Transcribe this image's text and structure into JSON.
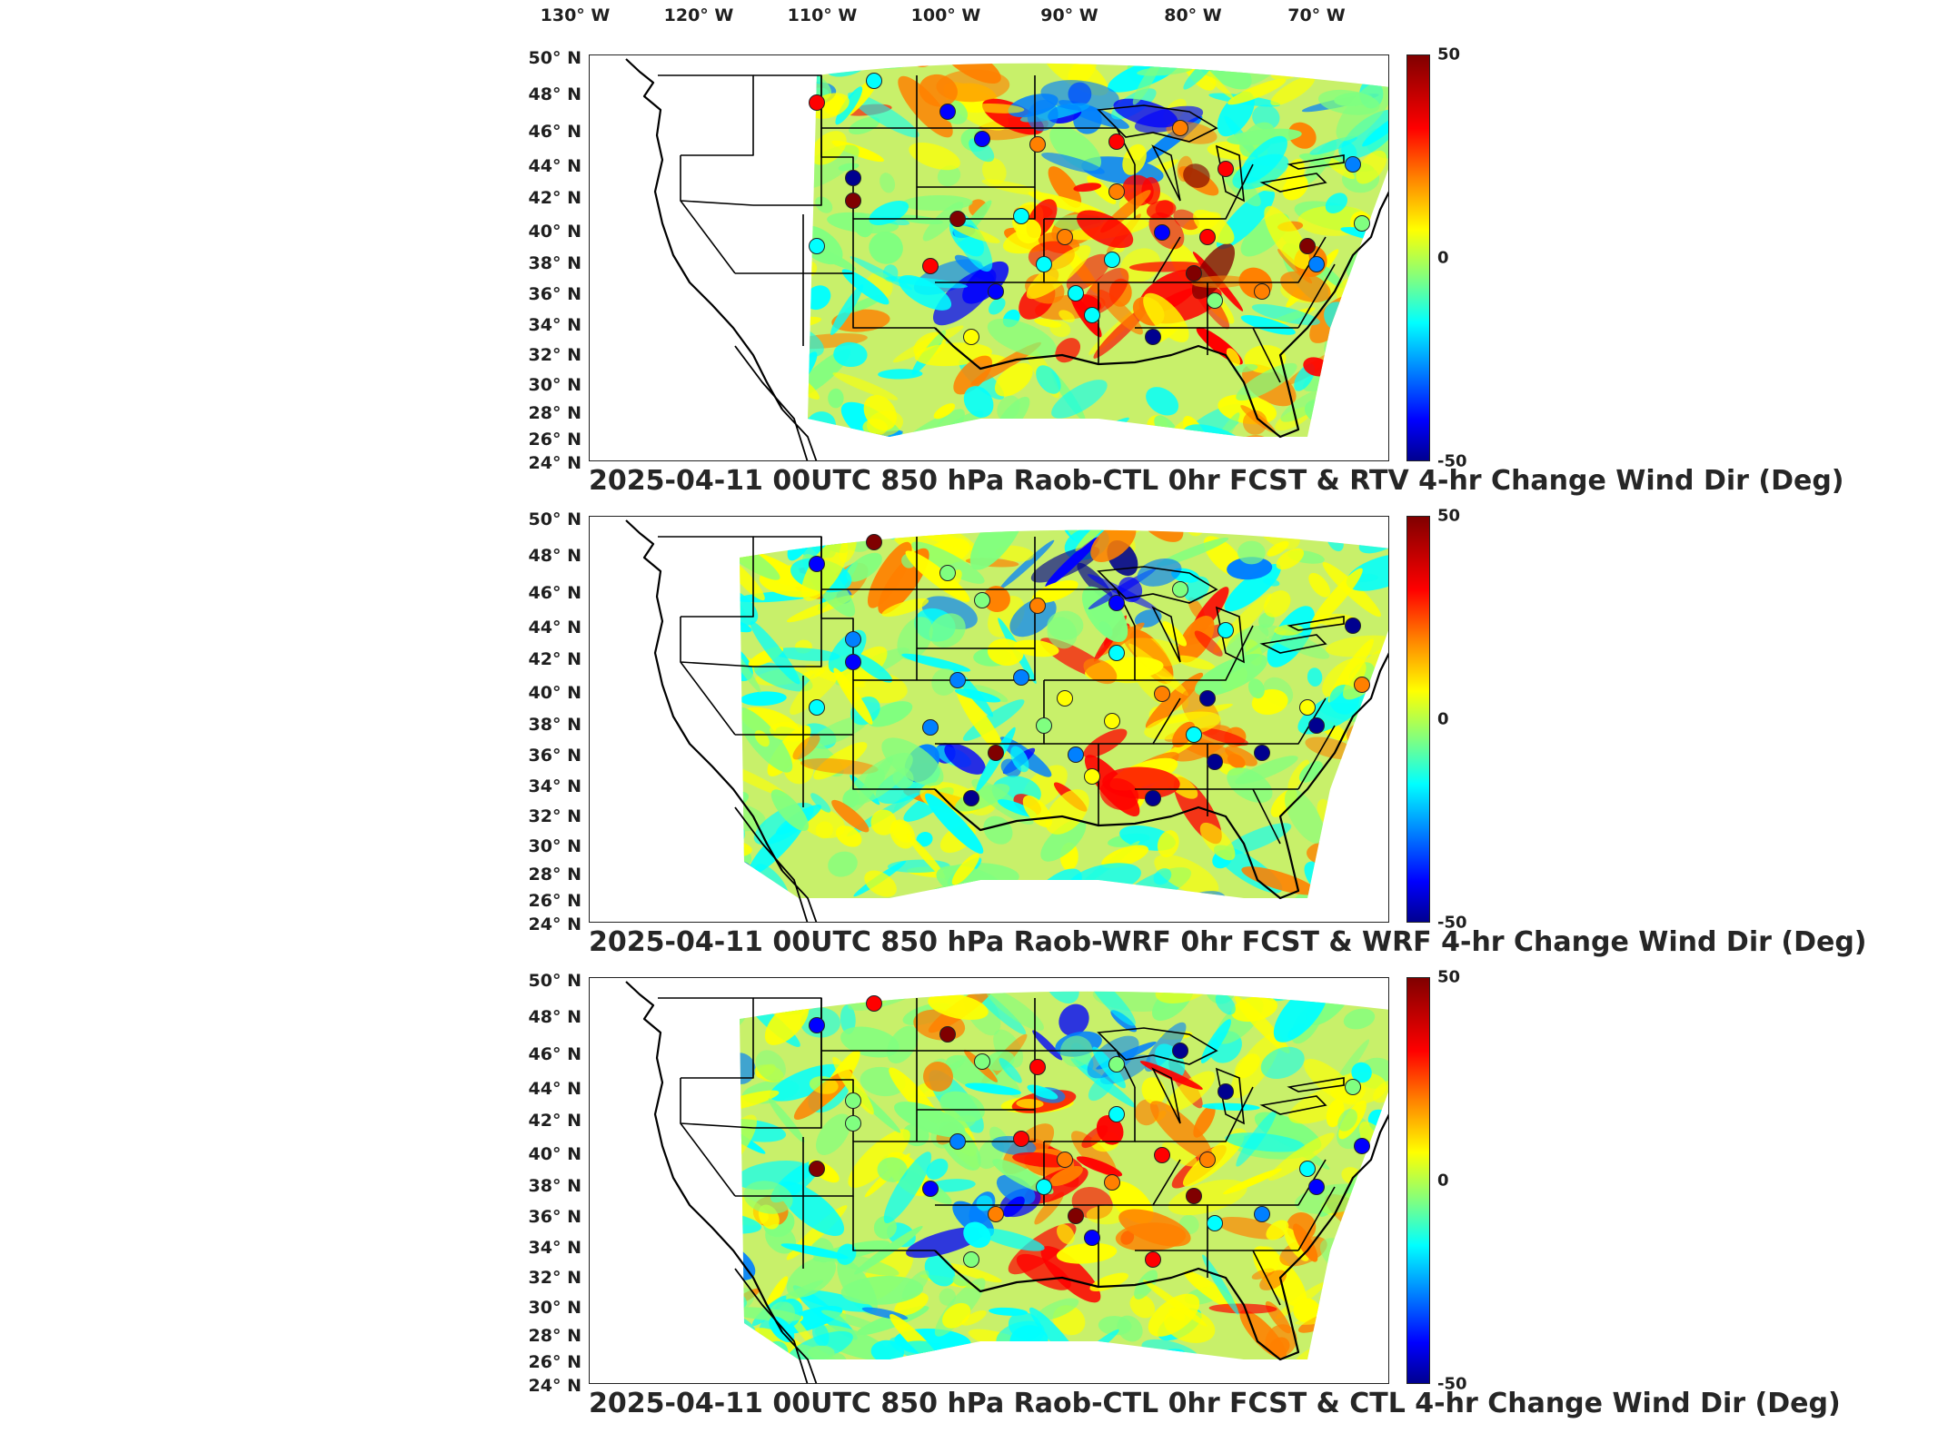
{
  "longitude_ticks": [
    "130° W",
    "120° W",
    "110° W",
    "100° W",
    "90° W",
    "80° W",
    "70° W"
  ],
  "latitude_ticks": [
    "50° N",
    "48° N",
    "46° N",
    "44° N",
    "42° N",
    "40° N",
    "38° N",
    "36° N",
    "34° N",
    "32° N",
    "30° N",
    "28° N",
    "26° N",
    "24° N"
  ],
  "colorbar": {
    "max": "50",
    "mid": "0",
    "min": "-50",
    "colormap": "jet"
  },
  "panels": [
    {
      "title": "2025-04-11 00UTC 850 hPa Raob-CTL 0hr FCST & RTV 4-hr Change Wind Dir (Deg)"
    },
    {
      "title": "2025-04-11 00UTC 850 hPa Raob-WRF 0hr FCST & WRF 4-hr Change Wind Dir (Deg)"
    },
    {
      "title": "2025-04-11 00UTC 850 hPa Raob-CTL 0hr FCST & CTL 4-hr Change Wind Dir (Deg)"
    }
  ],
  "colors": {
    "cb_max": "#800000",
    "cb_mid": "#80ff80",
    "cb_min": "#00008f",
    "land_outline": "#000000"
  }
}
